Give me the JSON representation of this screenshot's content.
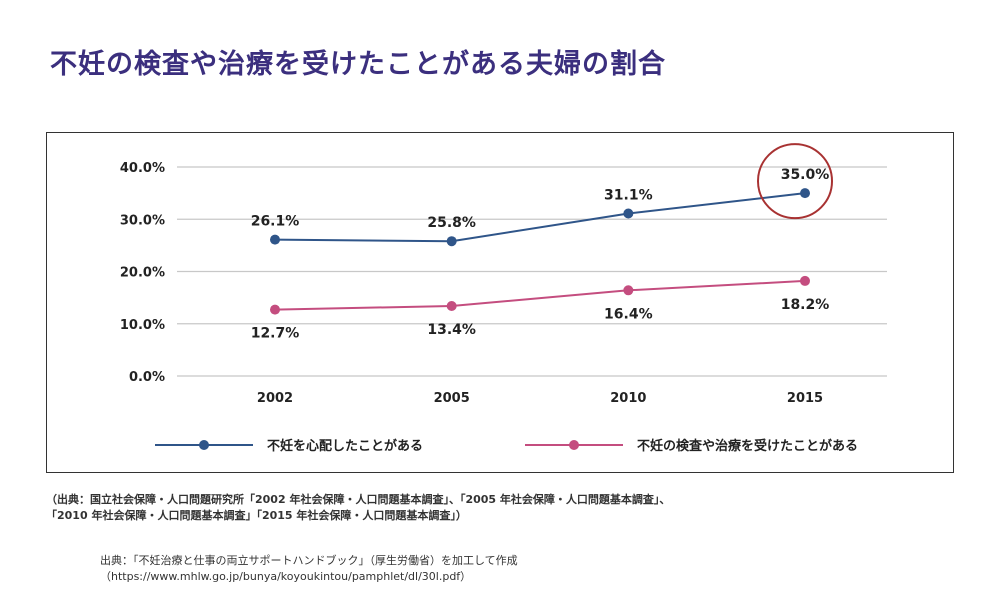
{
  "title": "不妊の検査や治療を受けたことがある夫婦の割合",
  "chart_data": {
    "type": "line",
    "x": [
      "2002",
      "2005",
      "2010",
      "2015"
    ],
    "ylim": [
      0,
      40
    ],
    "y_ticks": [
      "0.0%",
      "10.0%",
      "20.0%",
      "30.0%",
      "40.0%"
    ],
    "grid": true,
    "legend_position": "bottom",
    "series": [
      {
        "name": "不妊を心配したことがある",
        "color": "#2f5589",
        "values": [
          26.1,
          25.8,
          31.1,
          35.0
        ],
        "labels": [
          "26.1%",
          "25.8%",
          "31.1%",
          "35.0%"
        ],
        "label_position": "above"
      },
      {
        "name": "不妊の検査や治療を受けたことがある",
        "color": "#c44d7f",
        "values": [
          12.7,
          13.4,
          16.4,
          18.2
        ],
        "labels": [
          "12.7%",
          "13.4%",
          "16.4%",
          "18.2%"
        ],
        "label_position": "below"
      }
    ],
    "highlight": {
      "series": 0,
      "point": 3,
      "color": "#a83232"
    }
  },
  "source_note": [
    "（出典：国立社会保障・人口問題研究所「2002 年社会保障・人口問題基本調査」、「2005 年社会保障・人口問題基本調査」、",
    "「2010 年社会保障・人口問題基本調査」「2015 年社会保障・人口問題基本調査」）"
  ],
  "citation": [
    "出典：「不妊治療と仕事の両立サポートハンドブック」（厚生労働省）を加工して作成",
    "（https://www.mhlw.go.jp/bunya/koyoukintou/pamphlet/dl/30l.pdf）"
  ]
}
